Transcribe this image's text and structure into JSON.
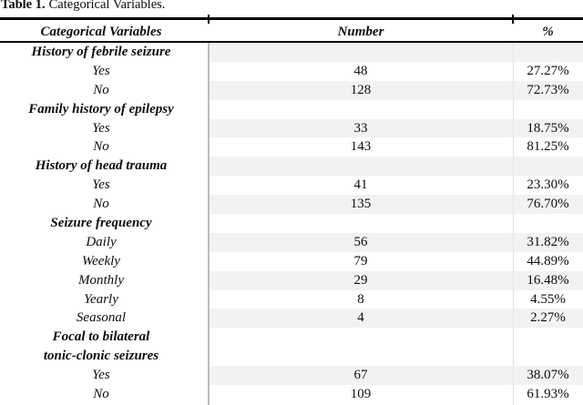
{
  "caption": {
    "label": "Table 1.",
    "title": "Categorical Variables."
  },
  "colors": {
    "rule": "#000000",
    "row_shade": "#f2f2f2",
    "divider": "#bdbdbd",
    "divider_light": "#e4e4e4",
    "background": "#ffffff",
    "text": "#0d0d0d"
  },
  "table": {
    "columns": [
      "Categorical Variables",
      "Number",
      "%"
    ],
    "rows": [
      {
        "label": "History of febrile seizure",
        "kind": "category",
        "number": "",
        "percent": "",
        "shaded": true,
        "double": false
      },
      {
        "label": "Yes",
        "kind": "item",
        "number": "48",
        "percent": "27.27%",
        "shaded": false,
        "double": false
      },
      {
        "label": "No",
        "kind": "item",
        "number": "128",
        "percent": "72.73%",
        "shaded": true,
        "double": false
      },
      {
        "label": "Family history of epilepsy",
        "kind": "category",
        "number": "",
        "percent": "",
        "shaded": false,
        "double": false
      },
      {
        "label": "Yes",
        "kind": "item",
        "number": "33",
        "percent": "18.75%",
        "shaded": true,
        "double": false
      },
      {
        "label": "No",
        "kind": "item",
        "number": "143",
        "percent": "81.25%",
        "shaded": false,
        "double": false
      },
      {
        "label": "History of head trauma",
        "kind": "category",
        "number": "",
        "percent": "",
        "shaded": true,
        "double": false
      },
      {
        "label": "Yes",
        "kind": "item",
        "number": "41",
        "percent": "23.30%",
        "shaded": false,
        "double": false
      },
      {
        "label": "No",
        "kind": "item",
        "number": "135",
        "percent": "76.70%",
        "shaded": true,
        "double": false
      },
      {
        "label": "Seizure frequency",
        "kind": "category",
        "number": "",
        "percent": "",
        "shaded": false,
        "double": false
      },
      {
        "label": "Daily",
        "kind": "item",
        "number": "56",
        "percent": "31.82%",
        "shaded": true,
        "double": false
      },
      {
        "label": "Weekly",
        "kind": "item",
        "number": "79",
        "percent": "44.89%",
        "shaded": false,
        "double": false
      },
      {
        "label": "Monthly",
        "kind": "item",
        "number": "29",
        "percent": "16.48%",
        "shaded": true,
        "double": false
      },
      {
        "label": "Yearly",
        "kind": "item",
        "number": "8",
        "percent": "4.55%",
        "shaded": false,
        "double": false
      },
      {
        "label": "Seasonal",
        "kind": "item",
        "number": "4",
        "percent": "2.27%",
        "shaded": true,
        "double": false
      },
      {
        "label": "Focal to bilateral\ntonic-clonic seizures",
        "kind": "category",
        "number": "",
        "percent": "",
        "shaded": false,
        "double": true
      },
      {
        "label": "Yes",
        "kind": "item",
        "number": "67",
        "percent": "38.07%",
        "shaded": true,
        "double": false
      },
      {
        "label": "No",
        "kind": "item",
        "number": "109",
        "percent": "61.93%",
        "shaded": false,
        "double": false
      }
    ]
  }
}
